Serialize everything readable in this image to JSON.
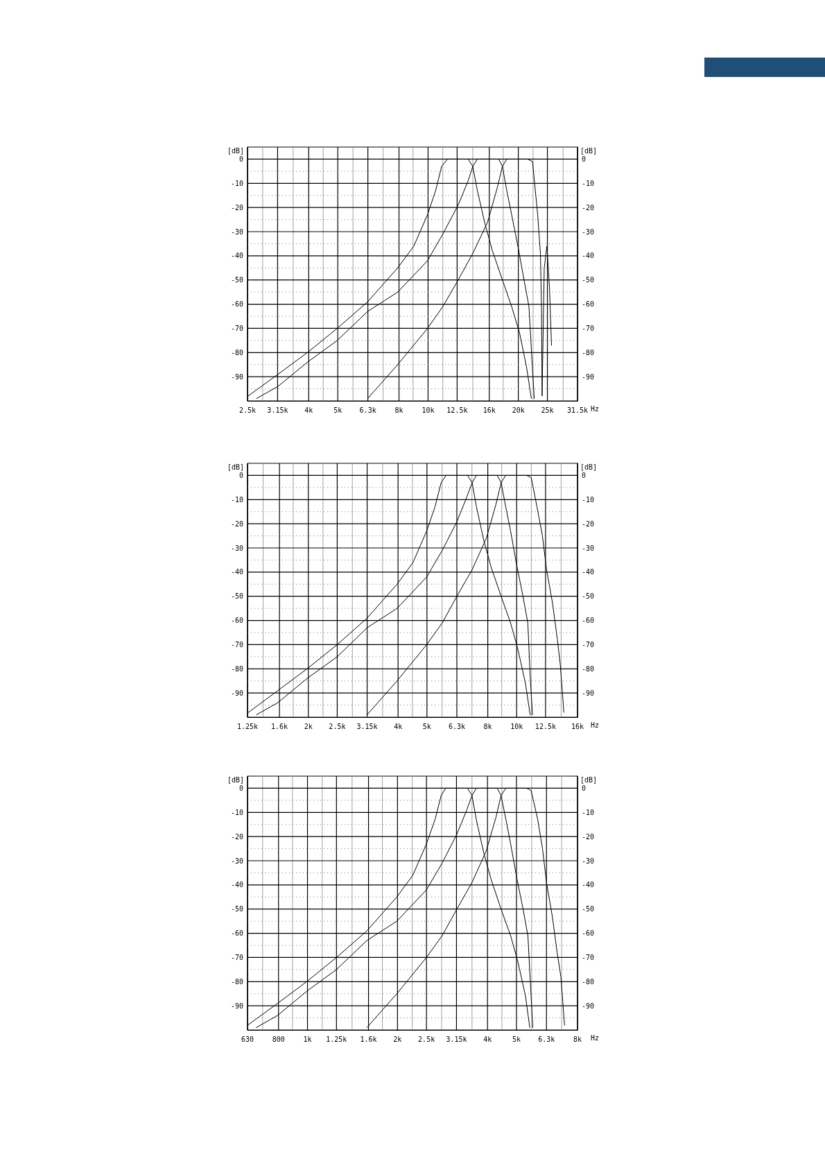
{
  "chart_data": [
    {
      "type": "line",
      "ylabel": "[dB]",
      "y2label": "[dB]",
      "xlabel": "Hz",
      "log": "x",
      "grid": true,
      "line_style": "solid",
      "xlim": [
        2500,
        31500
      ],
      "ylim": [
        -100,
        5
      ],
      "y2lim": [
        -100,
        5
      ],
      "xticks": [
        {
          "value": 2500,
          "label": "2.5k"
        },
        {
          "value": 2810,
          "label": null
        },
        {
          "value": 3150,
          "label": "3.15k"
        },
        {
          "value": 3550,
          "label": null
        },
        {
          "value": 4000,
          "label": "4k"
        },
        {
          "value": 4470,
          "label": null
        },
        {
          "value": 5000,
          "label": "5k"
        },
        {
          "value": 5620,
          "label": null
        },
        {
          "value": 6300,
          "label": "6.3k"
        },
        {
          "value": 7080,
          "label": null
        },
        {
          "value": 8000,
          "label": "8k"
        },
        {
          "value": 8910,
          "label": null
        },
        {
          "value": 10000,
          "label": "10k"
        },
        {
          "value": 11200,
          "label": null
        },
        {
          "value": 12500,
          "label": "12.5k"
        },
        {
          "value": 14100,
          "label": null
        },
        {
          "value": 16000,
          "label": "16k"
        },
        {
          "value": 17800,
          "label": null
        },
        {
          "value": 20000,
          "label": "20k"
        },
        {
          "value": 22400,
          "label": null
        },
        {
          "value": 25000,
          "label": "25k"
        },
        {
          "value": 28200,
          "label": null
        },
        {
          "value": 31500,
          "label": "31.5k"
        }
      ],
      "yticks": [
        0,
        {
          "value": -5,
          "label": null
        },
        -10,
        {
          "value": -15,
          "label": null
        },
        -20,
        {
          "value": -25,
          "label": null
        },
        -30,
        {
          "value": -35,
          "label": null
        },
        -40,
        {
          "value": -45,
          "label": null
        },
        -50,
        {
          "value": -55,
          "label": null
        },
        -60,
        {
          "value": -65,
          "label": null
        },
        -70,
        {
          "value": -75,
          "label": null
        },
        -80,
        {
          "value": -85,
          "label": null
        },
        -90,
        {
          "value": -95,
          "label": null
        }
      ],
      "y2ticks": [
        0,
        -10,
        -20,
        -30,
        -40,
        -50,
        -60,
        -70,
        -80,
        -90
      ],
      "series": [
        {
          "color": "#000000",
          "x": [
            2510,
            3160,
            3960,
            4980,
            6290,
            7920,
            8960,
            9960,
            10600,
            11100,
            11600,
            13600,
            14100,
            14600,
            15500,
            16400,
            17700,
            19000,
            20200,
            21300,
            22100
          ],
          "values": [
            -98,
            -89,
            -80,
            -70,
            -59,
            -45,
            -36,
            -23,
            -13,
            -3,
            0,
            0,
            -3,
            -13,
            -27,
            -38,
            -50,
            -61,
            -72,
            -86,
            -99
          ]
        },
        {
          "color": "#000000",
          "x": [
            2680,
            3160,
            3960,
            4980,
            6290,
            7920,
            9960,
            11200,
            12600,
            13600,
            14100,
            14600,
            17200,
            17700,
            18300,
            19000,
            20000,
            20900,
            21700,
            22200,
            22600
          ],
          "values": [
            -99,
            -94,
            -84,
            -75,
            -63,
            -55,
            -42,
            -31,
            -19,
            -9,
            -3,
            0,
            0,
            -3,
            -13,
            -23,
            -37,
            -50,
            -61,
            -83,
            -99
          ]
        },
        {
          "color": "#000000",
          "x": [
            6290,
            7920,
            9960,
            11200,
            12600,
            14100,
            15800,
            17000,
            17700,
            18300,
            21500,
            22300,
            23200,
            23700,
            23900,
            24000,
            24400,
            24900,
            25400,
            25800
          ],
          "values": [
            -99,
            -85,
            -70,
            -61,
            -50,
            -39,
            -26,
            -12,
            -3,
            0,
            0,
            -1,
            -23,
            -39,
            -63,
            -98,
            -45,
            -36,
            -53,
            -77
          ]
        }
      ]
    },
    {
      "type": "line",
      "ylabel": "[dB]",
      "y2label": "[dB]",
      "xlabel": "Hz",
      "log": "x",
      "grid": true,
      "line_style": "solid",
      "xlim": [
        1250,
        16000
      ],
      "ylim": [
        -100,
        5
      ],
      "y2lim": [
        -100,
        5
      ],
      "xticks": [
        {
          "value": 1250,
          "label": "1.25k"
        },
        {
          "value": 1410,
          "label": null
        },
        {
          "value": 1600,
          "label": "1.6k"
        },
        {
          "value": 1780,
          "label": null
        },
        {
          "value": 2000,
          "label": "2k"
        },
        {
          "value": 2240,
          "label": null
        },
        {
          "value": 2500,
          "label": "2.5k"
        },
        {
          "value": 2810,
          "label": null
        },
        {
          "value": 3150,
          "label": "3.15k"
        },
        {
          "value": 3550,
          "label": null
        },
        {
          "value": 4000,
          "label": "4k"
        },
        {
          "value": 4470,
          "label": null
        },
        {
          "value": 5000,
          "label": "5k"
        },
        {
          "value": 5620,
          "label": null
        },
        {
          "value": 6300,
          "label": "6.3k"
        },
        {
          "value": 7080,
          "label": null
        },
        {
          "value": 8000,
          "label": "8k"
        },
        {
          "value": 8910,
          "label": null
        },
        {
          "value": 10000,
          "label": "10k"
        },
        {
          "value": 11200,
          "label": null
        },
        {
          "value": 12500,
          "label": "12.5k"
        },
        {
          "value": 14100,
          "label": null
        },
        {
          "value": 16000,
          "label": "16k"
        }
      ],
      "yticks": [
        0,
        {
          "value": -5,
          "label": null
        },
        -10,
        {
          "value": -15,
          "label": null
        },
        -20,
        {
          "value": -25,
          "label": null
        },
        -30,
        {
          "value": -35,
          "label": null
        },
        -40,
        {
          "value": -45,
          "label": null
        },
        -50,
        {
          "value": -55,
          "label": null
        },
        -60,
        {
          "value": -65,
          "label": null
        },
        -70,
        {
          "value": -75,
          "label": null
        },
        -80,
        {
          "value": -85,
          "label": null
        },
        -90,
        {
          "value": -95,
          "label": null
        }
      ],
      "y2ticks": [
        0,
        -10,
        -20,
        -30,
        -40,
        -50,
        -60,
        -70,
        -80,
        -90
      ],
      "series": [
        {
          "color": "#000000",
          "x": [
            1260,
            1580,
            1980,
            2500,
            3150,
            3970,
            4490,
            4990,
            5320,
            5580,
            5790,
            6840,
            7090,
            7330,
            7760,
            8210,
            8870,
            9540,
            10100,
            10700,
            11100
          ],
          "values": [
            -98,
            -89,
            -80,
            -70,
            -59,
            -45,
            -36,
            -23,
            -13,
            -3,
            0,
            0,
            -3,
            -13,
            -27,
            -38,
            -50,
            -61,
            -72,
            -86,
            -99
          ]
        },
        {
          "color": "#000000",
          "x": [
            1340,
            1580,
            1980,
            2500,
            3150,
            3970,
            4990,
            5630,
            6310,
            6800,
            7090,
            7330,
            8600,
            8870,
            9190,
            9540,
            10000,
            10500,
            10900,
            11100,
            11300
          ],
          "values": [
            -99,
            -94,
            -84,
            -75,
            -63,
            -55,
            -42,
            -31,
            -19,
            -9,
            -3,
            0,
            0,
            -3,
            -13,
            -23,
            -37,
            -50,
            -61,
            -83,
            -99
          ]
        },
        {
          "color": "#000000",
          "x": [
            3150,
            3970,
            4990,
            5630,
            6300,
            7090,
            7910,
            8520,
            8870,
            9190,
            10800,
            11200,
            11700,
            12200,
            12600,
            13200,
            13700,
            14000,
            14400
          ],
          "values": [
            -99,
            -85,
            -70,
            -61,
            -50,
            -39,
            -26,
            -12,
            -3,
            0,
            0,
            -1,
            -13,
            -25,
            -39,
            -53,
            -68,
            -78,
            -98
          ]
        }
      ]
    },
    {
      "type": "line",
      "ylabel": "[dB]",
      "y2label": "[dB]",
      "xlabel": "Hz",
      "log": "x",
      "grid": true,
      "line_style": "solid",
      "xlim": [
        630,
        8000
      ],
      "ylim": [
        -100,
        5
      ],
      "y2lim": [
        -100,
        5
      ],
      "xticks": [
        {
          "value": 630,
          "label": "630"
        },
        {
          "value": 708,
          "label": null
        },
        {
          "value": 800,
          "label": "800"
        },
        {
          "value": 891,
          "label": null
        },
        {
          "value": 1000,
          "label": "1k"
        },
        {
          "value": 1120,
          "label": null
        },
        {
          "value": 1250,
          "label": "1.25k"
        },
        {
          "value": 1410,
          "label": null
        },
        {
          "value": 1600,
          "label": "1.6k"
        },
        {
          "value": 1780,
          "label": null
        },
        {
          "value": 2000,
          "label": "2k"
        },
        {
          "value": 2240,
          "label": null
        },
        {
          "value": 2500,
          "label": "2.5k"
        },
        {
          "value": 2810,
          "label": null
        },
        {
          "value": 3150,
          "label": "3.15k"
        },
        {
          "value": 3550,
          "label": null
        },
        {
          "value": 4000,
          "label": "4k"
        },
        {
          "value": 4470,
          "label": null
        },
        {
          "value": 5000,
          "label": "5k"
        },
        {
          "value": 5620,
          "label": null
        },
        {
          "value": 6300,
          "label": "6.3k"
        },
        {
          "value": 7080,
          "label": null
        },
        {
          "value": 8000,
          "label": "8k"
        }
      ],
      "yticks": [
        0,
        {
          "value": -5,
          "label": null
        },
        -10,
        {
          "value": -15,
          "label": null
        },
        -20,
        {
          "value": -25,
          "label": null
        },
        -30,
        {
          "value": -35,
          "label": null
        },
        -40,
        {
          "value": -45,
          "label": null
        },
        -50,
        {
          "value": -55,
          "label": null
        },
        -60,
        {
          "value": -65,
          "label": null
        },
        -70,
        {
          "value": -75,
          "label": null
        },
        -80,
        {
          "value": -85,
          "label": null
        },
        -90,
        {
          "value": -95,
          "label": null
        }
      ],
      "y2ticks": [
        0,
        -10,
        -20,
        -30,
        -40,
        -50,
        -60,
        -70,
        -80,
        -90
      ],
      "series": [
        {
          "color": "#000000",
          "x": [
            631,
            794,
            994,
            1250,
            1580,
            1990,
            2250,
            2500,
            2670,
            2800,
            2900,
            3430,
            3550,
            3670,
            3890,
            4120,
            4440,
            4780,
            5060,
            5360,
            5540
          ],
          "values": [
            -98,
            -89,
            -80,
            -70,
            -59,
            -45,
            -36,
            -23,
            -13,
            -3,
            0,
            0,
            -3,
            -13,
            -27,
            -38,
            -50,
            -61,
            -72,
            -86,
            -99
          ]
        },
        {
          "color": "#000000",
          "x": [
            674,
            794,
            994,
            1250,
            1580,
            1990,
            2500,
            2820,
            3160,
            3410,
            3550,
            3670,
            4310,
            4440,
            4610,
            4780,
            5010,
            5260,
            5460,
            5580,
            5670
          ],
          "values": [
            -99,
            -94,
            -84,
            -75,
            -63,
            -55,
            -42,
            -31,
            -19,
            -9,
            -3,
            0,
            0,
            -3,
            -13,
            -23,
            -37,
            -50,
            -61,
            -83,
            -99
          ]
        },
        {
          "color": "#000000",
          "x": [
            1580,
            1990,
            2500,
            2820,
            3160,
            3550,
            3960,
            4270,
            4440,
            4610,
            5410,
            5600,
            5890,
            6110,
            6300,
            6590,
            6840,
            7040,
            7240
          ],
          "values": [
            -99,
            -85,
            -70,
            -61,
            -50,
            -39,
            -26,
            -12,
            -3,
            0,
            0,
            -1,
            -13,
            -25,
            -39,
            -53,
            -68,
            -78,
            -98
          ]
        }
      ]
    }
  ]
}
